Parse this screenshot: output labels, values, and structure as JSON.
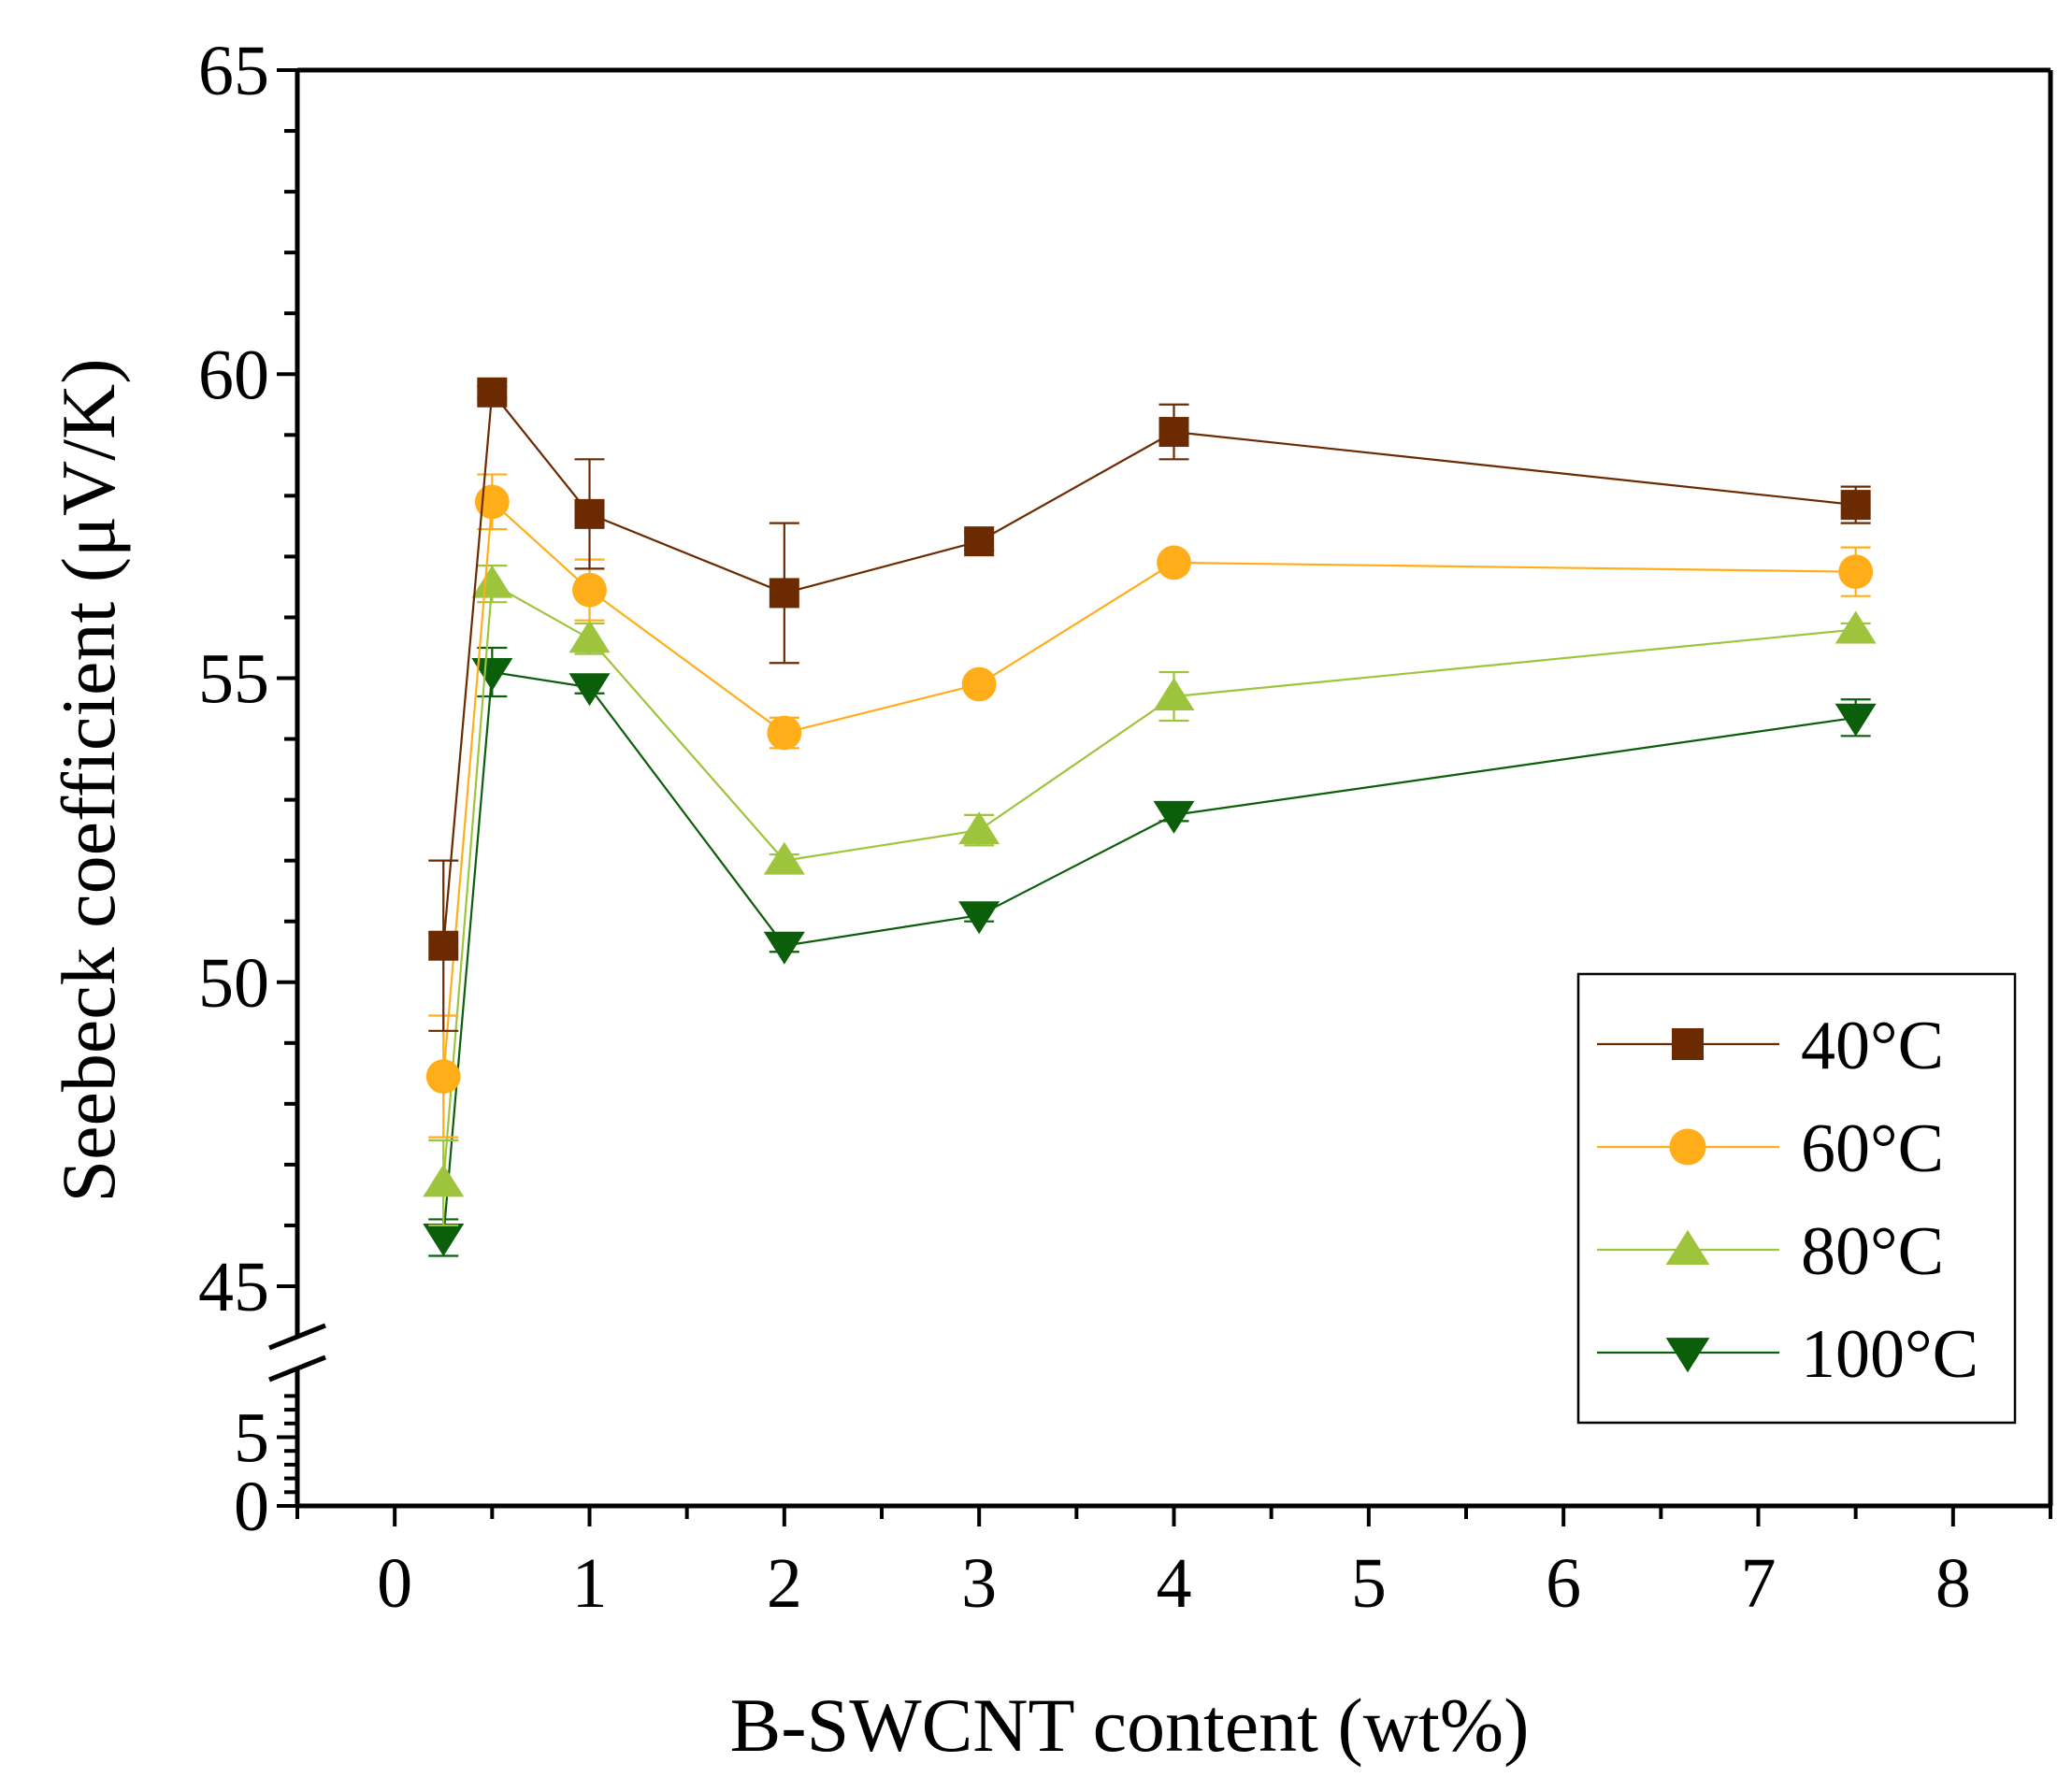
{
  "chart_data": {
    "type": "line",
    "xlabel": "B-SWCNT content (wt%)",
    "ylabel": "Seebeck coefficient (μV/K)",
    "xlim": [
      -0.5,
      8.5
    ],
    "xticks": [
      "0",
      "1",
      "2",
      "3",
      "4",
      "5",
      "6",
      "7",
      "8"
    ],
    "ylim_upper": [
      45,
      65
    ],
    "yticks_upper": [
      "45",
      "50",
      "55",
      "60",
      "65"
    ],
    "ylim_lower": [
      0,
      10
    ],
    "yticks_lower": [
      "0",
      "5"
    ],
    "axis_break": true,
    "error_bars": true,
    "legend_position": "bottom-right",
    "x": [
      0.25,
      0.5,
      1,
      2,
      3,
      4,
      7.5
    ],
    "series": [
      {
        "name": "40°C",
        "marker": "square",
        "color": "#6b2a00",
        "values": [
          50.6,
          59.7,
          57.7,
          56.4,
          57.25,
          59.05,
          57.85
        ],
        "errors": [
          1.4,
          0.1,
          0.9,
          1.15,
          0.15,
          0.45,
          0.3
        ]
      },
      {
        "name": "60°C",
        "marker": "circle",
        "color": "#ffae1a",
        "values": [
          48.45,
          57.9,
          56.45,
          54.1,
          54.9,
          56.9,
          56.75
        ],
        "errors": [
          1.0,
          0.45,
          0.5,
          0.25,
          0.1,
          0.1,
          0.4
        ]
      },
      {
        "name": "80°C",
        "marker": "triangle-up",
        "color": "#9dc43c",
        "values": [
          46.7,
          56.55,
          55.65,
          52.0,
          52.5,
          54.7,
          55.8
        ],
        "errors": [
          0.7,
          0.3,
          0.25,
          0.1,
          0.25,
          0.4,
          0.1
        ]
      },
      {
        "name": "100°C",
        "marker": "triangle-down",
        "color": "#0b5e0a",
        "values": [
          45.8,
          55.1,
          54.85,
          50.6,
          51.1,
          52.75,
          54.35
        ],
        "errors": [
          0.3,
          0.4,
          0.1,
          0.1,
          0.1,
          0.1,
          0.3
        ]
      }
    ]
  }
}
